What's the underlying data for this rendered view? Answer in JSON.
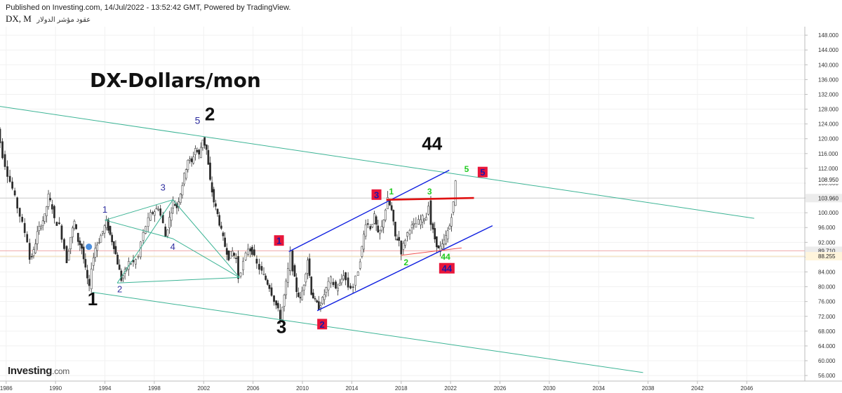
{
  "header": {
    "published": "Published on Investing.com, 14/Jul/2022 - 13:52:42 GMT, Powered by TradingView.",
    "symbol": "DX, M",
    "instrument": "عقود مؤشر الدولار"
  },
  "logo": {
    "brand": "Investing",
    "suffix": ".com"
  },
  "chart_data": {
    "type": "candlestick",
    "title": "DX-Dollars/mon",
    "x_axis": {
      "ticks": [
        "1986",
        "1990",
        "1994",
        "1998",
        "2002",
        "2006",
        "2010",
        "2014",
        "2018",
        "2022",
        "2026",
        "2030",
        "2034",
        "2038",
        "2042",
        "2046"
      ],
      "range": [
        1985.5,
        2050.7
      ]
    },
    "y_axis": {
      "ticks": [
        "148.000",
        "144.000",
        "140.000",
        "136.000",
        "132.000",
        "128.000",
        "124.000",
        "120.000",
        "116.000",
        "112.000",
        "108.000",
        "104.000",
        "100.000",
        "96.000",
        "92.000",
        "88.000",
        "84.000",
        "80.000",
        "76.000",
        "72.000",
        "68.000",
        "64.000",
        "60.000",
        "56.000"
      ],
      "range": [
        54.5,
        150.3
      ],
      "side": "right"
    },
    "price_tags": [
      {
        "value": 108.95,
        "label": "108.950",
        "bg": "#ffffff",
        "fg": "#222222"
      },
      {
        "value": 103.96,
        "label": "103.960",
        "bg": "#ececec",
        "fg": "#222222"
      },
      {
        "value": 89.71,
        "label": "89.710",
        "bg": "#ececec",
        "fg": "#222222"
      },
      {
        "value": 88.255,
        "label": "88.255",
        "bg": "#fff5dc",
        "fg": "#222222"
      }
    ],
    "price_path": [
      [
        1985.0,
        128.0
      ],
      [
        1985.4,
        122.5
      ],
      [
        1985.8,
        115.5
      ],
      [
        1986.2,
        110.5
      ],
      [
        1986.6,
        106.5
      ],
      [
        1987.0,
        101.5
      ],
      [
        1987.4,
        97.0
      ],
      [
        1987.8,
        92.5
      ],
      [
        1988.0,
        87.5
      ],
      [
        1988.3,
        89.5
      ],
      [
        1988.6,
        94.5
      ],
      [
        1988.9,
        97.0
      ],
      [
        1989.2,
        99.0
      ],
      [
        1989.5,
        104.5
      ],
      [
        1989.8,
        101.5
      ],
      [
        1990.0,
        98.0
      ],
      [
        1990.4,
        96.5
      ],
      [
        1990.8,
        90.5
      ],
      [
        1991.0,
        87.0
      ],
      [
        1991.3,
        93.5
      ],
      [
        1991.6,
        97.5
      ],
      [
        1991.9,
        92.5
      ],
      [
        1992.2,
        90.5
      ],
      [
        1992.5,
        84.5
      ],
      [
        1992.8,
        79.5
      ],
      [
        1993.0,
        85.5
      ],
      [
        1993.3,
        90.5
      ],
      [
        1993.6,
        92.5
      ],
      [
        1993.9,
        95.0
      ],
      [
        1994.2,
        97.5
      ],
      [
        1994.5,
        94.0
      ],
      [
        1994.8,
        91.0
      ],
      [
        1995.1,
        86.5
      ],
      [
        1995.4,
        82.0
      ],
      [
        1995.7,
        84.0
      ],
      [
        1996.0,
        86.5
      ],
      [
        1996.4,
        86.5
      ],
      [
        1996.8,
        88.0
      ],
      [
        1997.0,
        92.0
      ],
      [
        1997.4,
        96.5
      ],
      [
        1997.8,
        99.5
      ],
      [
        1998.1,
        100.5
      ],
      [
        1998.4,
        101.5
      ],
      [
        1998.8,
        97.0
      ],
      [
        1999.0,
        93.5
      ],
      [
        1999.3,
        98.5
      ],
      [
        1999.6,
        103.0
      ],
      [
        1999.9,
        101.5
      ],
      [
        2000.2,
        105.5
      ],
      [
        2000.5,
        110.0
      ],
      [
        2000.8,
        114.5
      ],
      [
        2001.1,
        113.5
      ],
      [
        2001.4,
        117.5
      ],
      [
        2001.7,
        115.5
      ],
      [
        2002.0,
        120.0
      ],
      [
        2002.3,
        117.0
      ],
      [
        2002.6,
        108.5
      ],
      [
        2002.9,
        103.0
      ],
      [
        2003.2,
        99.5
      ],
      [
        2003.5,
        95.0
      ],
      [
        2003.8,
        91.0
      ],
      [
        2004.1,
        88.0
      ],
      [
        2004.4,
        89.5
      ],
      [
        2004.7,
        87.5
      ],
      [
        2004.9,
        82.5
      ],
      [
        2005.3,
        86.5
      ],
      [
        2005.7,
        90.5
      ],
      [
        2006.0,
        89.5
      ],
      [
        2006.4,
        86.0
      ],
      [
        2006.8,
        84.0
      ],
      [
        2007.1,
        82.0
      ],
      [
        2007.4,
        80.0
      ],
      [
        2007.8,
        76.5
      ],
      [
        2008.1,
        73.5
      ],
      [
        2008.3,
        71.5
      ],
      [
        2008.6,
        77.5
      ],
      [
        2008.9,
        84.5
      ],
      [
        2009.1,
        89.0
      ],
      [
        2009.3,
        85.0
      ],
      [
        2009.6,
        79.0
      ],
      [
        2009.9,
        76.5
      ],
      [
        2010.2,
        81.0
      ],
      [
        2010.5,
        87.5
      ],
      [
        2010.8,
        78.5
      ],
      [
        2011.1,
        76.0
      ],
      [
        2011.4,
        74.5
      ],
      [
        2011.7,
        76.5
      ],
      [
        2012.0,
        79.5
      ],
      [
        2012.4,
        82.0
      ],
      [
        2012.8,
        79.5
      ],
      [
        2013.1,
        80.5
      ],
      [
        2013.4,
        83.5
      ],
      [
        2013.8,
        80.0
      ],
      [
        2014.2,
        80.0
      ],
      [
        2014.6,
        84.5
      ],
      [
        2014.9,
        90.5
      ],
      [
        2015.2,
        97.5
      ],
      [
        2015.6,
        96.0
      ],
      [
        2015.9,
        99.0
      ],
      [
        2016.2,
        94.0
      ],
      [
        2016.5,
        96.0
      ],
      [
        2016.8,
        101.0
      ],
      [
        2017.0,
        103.5
      ],
      [
        2017.3,
        100.5
      ],
      [
        2017.6,
        93.5
      ],
      [
        2017.9,
        92.5
      ],
      [
        2018.1,
        89.5
      ],
      [
        2018.4,
        93.0
      ],
      [
        2018.8,
        96.0
      ],
      [
        2019.1,
        96.5
      ],
      [
        2019.5,
        97.5
      ],
      [
        2019.8,
        98.5
      ],
      [
        2020.1,
        99.0
      ],
      [
        2020.3,
        102.5
      ],
      [
        2020.5,
        97.0
      ],
      [
        2020.8,
        93.0
      ],
      [
        2021.1,
        90.0
      ],
      [
        2021.4,
        91.0
      ],
      [
        2021.7,
        93.5
      ],
      [
        2022.0,
        96.5
      ],
      [
        2022.3,
        102.5
      ],
      [
        2022.5,
        108.5
      ]
    ],
    "channel_lines": [
      {
        "name": "upper-channel",
        "color": "#3cb495",
        "points": [
          [
            1985.0,
            129.0
          ],
          [
            2046.6,
            98.5
          ]
        ]
      },
      {
        "name": "lower-channel",
        "color": "#3cb495",
        "points": [
          [
            1993.0,
            78.5
          ],
          [
            2037.6,
            56.8
          ]
        ]
      },
      {
        "name": "triangle-a",
        "color": "#3cb495",
        "points": [
          [
            1994.0,
            98.0
          ],
          [
            1999.5,
            103.5
          ],
          [
            2004.9,
            82.5
          ],
          [
            1999.5,
            93.0
          ],
          [
            1994.0,
            98.0
          ]
        ]
      },
      {
        "name": "triangle-b",
        "color": "#3cb495",
        "points": [
          [
            1995.0,
            81.0
          ],
          [
            2004.9,
            82.5
          ]
        ]
      },
      {
        "name": "triangle-c",
        "color": "#3cb495",
        "points": [
          [
            1995.0,
            81.0
          ],
          [
            1999.5,
            103.5
          ]
        ]
      },
      {
        "name": "upper-blue",
        "color": "#1020e0",
        "points": [
          [
            2008.9,
            89.5
          ],
          [
            2021.9,
            111.5
          ]
        ]
      },
      {
        "name": "lower-blue",
        "color": "#1020e0",
        "points": [
          [
            2011.2,
            73.5
          ],
          [
            2025.4,
            96.5
          ]
        ]
      },
      {
        "name": "red-resistance",
        "color": "#e01010",
        "points": [
          [
            2016.8,
            103.5
          ],
          [
            2023.9,
            104.0
          ]
        ]
      },
      {
        "name": "red-support",
        "color": "#f05050",
        "points": [
          [
            2018.0,
            88.5
          ],
          [
            2022.9,
            90.5
          ]
        ]
      }
    ],
    "hlines": [
      {
        "value": 103.96,
        "color": "#cccccc"
      },
      {
        "value": 89.71,
        "color": "#f0a8a8"
      },
      {
        "value": 88.255,
        "color": "#f2dcb0"
      }
    ],
    "annotations": [
      {
        "text": "1",
        "x": 1993.0,
        "y": 75.0,
        "color": "#111111",
        "size": 26,
        "bold": true
      },
      {
        "text": "2",
        "x": 2002.5,
        "y": 125.0,
        "color": "#111111",
        "size": 26,
        "bold": true
      },
      {
        "text": "3",
        "x": 2008.3,
        "y": 67.5,
        "color": "#111111",
        "size": 26,
        "bold": true
      },
      {
        "text": "44",
        "x": 2020.5,
        "y": 117.0,
        "color": "#111111",
        "size": 26,
        "bold": true
      },
      {
        "text": "5",
        "x": 2001.5,
        "y": 124.0,
        "color": "#3030a0",
        "size": 14,
        "bold": false
      },
      {
        "text": "1",
        "x": 1994.0,
        "y": 100.0,
        "color": "#3030a0",
        "size": 13,
        "bold": false
      },
      {
        "text": "2",
        "x": 1995.2,
        "y": 78.5,
        "color": "#3030a0",
        "size": 13,
        "bold": false
      },
      {
        "text": "3",
        "x": 1998.7,
        "y": 106.0,
        "color": "#3030a0",
        "size": 13,
        "bold": false
      },
      {
        "text": "4",
        "x": 1999.5,
        "y": 90.0,
        "color": "#3030a0",
        "size": 13,
        "bold": false
      },
      {
        "text": "1",
        "x": 2017.2,
        "y": 105.0,
        "color": "#22cc22",
        "size": 12,
        "bold": true
      },
      {
        "text": "3",
        "x": 2020.3,
        "y": 105.0,
        "color": "#22cc22",
        "size": 12,
        "bold": true
      },
      {
        "text": "2",
        "x": 2018.4,
        "y": 85.8,
        "color": "#22cc22",
        "size": 12,
        "bold": true
      },
      {
        "text": "44",
        "x": 2021.6,
        "y": 87.3,
        "color": "#22cc22",
        "size": 12,
        "bold": true
      },
      {
        "text": "5",
        "x": 2023.3,
        "y": 111.0,
        "color": "#22cc22",
        "size": 12,
        "bold": true
      }
    ],
    "boxed_labels": [
      {
        "text": "1",
        "x": 2008.1,
        "y": 92.5
      },
      {
        "text": "2",
        "x": 2011.6,
        "y": 69.9
      },
      {
        "text": "3",
        "x": 2016.0,
        "y": 104.9
      },
      {
        "text": "5",
        "x": 2024.6,
        "y": 111.0
      },
      {
        "text": "44",
        "x": 2021.7,
        "y": 85.0
      }
    ],
    "marker": {
      "x": 1992.7,
      "y": 90.8,
      "color": "#2a7ad8"
    }
  }
}
